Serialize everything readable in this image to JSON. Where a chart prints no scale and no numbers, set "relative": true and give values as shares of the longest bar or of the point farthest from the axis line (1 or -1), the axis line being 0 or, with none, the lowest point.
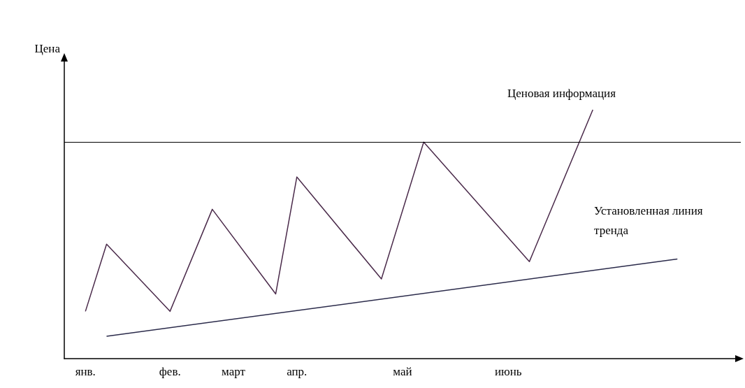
{
  "chart_data": {
    "type": "line",
    "relative": true,
    "ylabel": "Цена",
    "categories": [
      null,
      "янв.",
      null,
      null,
      null,
      "фев.",
      null,
      null,
      "март",
      null,
      null,
      "апр.",
      null,
      null,
      null,
      null,
      "май",
      null,
      null,
      null,
      null,
      "июнь",
      null,
      null,
      null,
      null,
      null,
      null,
      null,
      null,
      null,
      null,
      null
    ],
    "series": [
      {
        "color": "#4a2a4a",
        "values": [
          null,
          0.19,
          0.46,
          null,
          null,
          0.19,
          null,
          0.6,
          null,
          null,
          0.26,
          0.73,
          null,
          null,
          null,
          0.32,
          null,
          0.87,
          null,
          null,
          null,
          null,
          0.39,
          null,
          null,
          1,
          null,
          null,
          null,
          null,
          null,
          null,
          null
        ]
      },
      {
        "color": "#2a2a4a",
        "values": [
          null,
          null,
          0.09,
          null,
          null,
          null,
          null,
          null,
          null,
          null,
          null,
          null,
          null,
          null,
          null,
          null,
          null,
          null,
          null,
          null,
          null,
          null,
          null,
          null,
          null,
          null,
          null,
          null,
          null,
          0.4,
          null,
          null,
          null
        ]
      }
    ],
    "ref_lines": [
      {
        "axis": "y",
        "value": 0.87,
        "color": "#000000"
      }
    ],
    "annotations": [
      "Ценовая информация",
      "Установленная линия тренда"
    ],
    "marker": "none",
    "line_style": "solid",
    "grid": false
  }
}
